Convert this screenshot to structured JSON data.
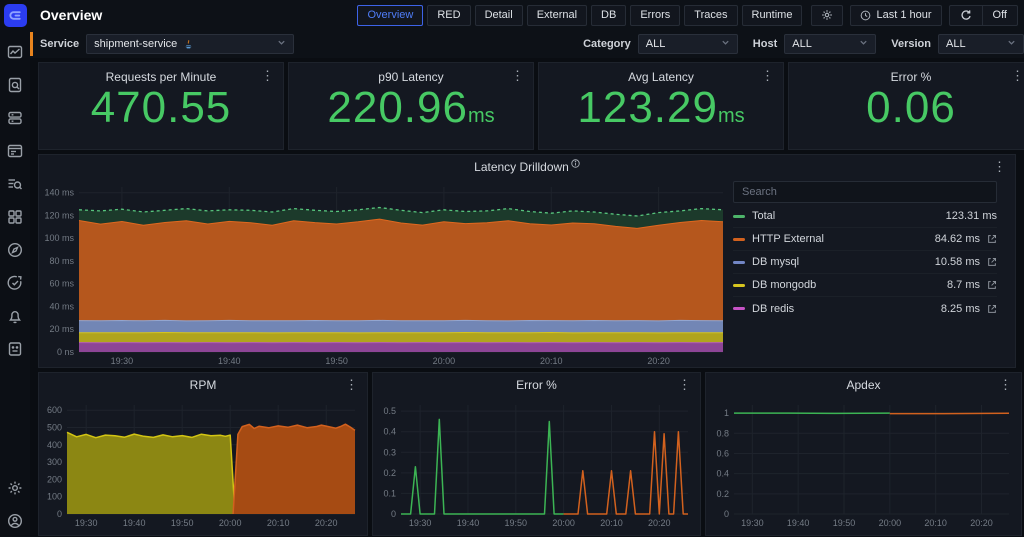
{
  "header": {
    "title": "Overview",
    "tabs": [
      {
        "label": "Overview",
        "active": true
      },
      {
        "label": "RED"
      },
      {
        "label": "Detail"
      },
      {
        "label": "External"
      },
      {
        "label": "DB"
      },
      {
        "label": "Errors"
      },
      {
        "label": "Traces"
      },
      {
        "label": "Runtime"
      }
    ],
    "time_range": "Last 1 hour",
    "auto_refresh": "Off"
  },
  "filters": {
    "service_label": "Service",
    "service_value": "shipment-service",
    "service_icon": "java-icon",
    "category_label": "Category",
    "category_value": "ALL",
    "host_label": "Host",
    "host_value": "ALL",
    "version_label": "Version",
    "version_value": "ALL"
  },
  "cards": [
    {
      "title": "Requests per Minute",
      "value": "470.55",
      "unit": ""
    },
    {
      "title": "p90 Latency",
      "value": "220.96",
      "unit": "ms"
    },
    {
      "title": "Avg Latency",
      "value": "123.29",
      "unit": "ms"
    },
    {
      "title": "Error %",
      "value": "0.06",
      "unit": ""
    }
  ],
  "latency_panel": {
    "search_placeholder": "Search",
    "legend": [
      {
        "name": "Total",
        "value": "123.31 ms",
        "color": "#4db46a",
        "link": false
      },
      {
        "name": "HTTP External",
        "value": "84.62 ms",
        "color": "#d2611e",
        "link": true
      },
      {
        "name": "DB mysql",
        "value": "10.58 ms",
        "color": "#7286c5",
        "link": true
      },
      {
        "name": "DB mongodb",
        "value": "8.7 ms",
        "color": "#d6c51f",
        "link": true
      },
      {
        "name": "DB redis",
        "value": "8.25 ms",
        "color": "#c653c6",
        "link": true
      }
    ]
  },
  "sidebar": {
    "icons": [
      "app-logo",
      "metrics-icon",
      "doc-search-icon",
      "hosts-icon",
      "browser-icon",
      "trace-search-icon",
      "services-grid-icon",
      "explore-compass-icon",
      "goals-target-icon",
      "alerts-bell-icon",
      "journal-icon",
      "settings-icon",
      "account-icon"
    ]
  },
  "colors": {
    "metric_green": "#47c964",
    "tab_active_blue": "#4f7df8",
    "accent_orange": "#e8841e",
    "panel_bg": "#141821",
    "page_bg": "#0a0d12"
  },
  "chart_data": [
    {
      "id": "latency",
      "type": "area",
      "title": "Latency Drilldown",
      "xlabel": "",
      "ylabel": "",
      "xlim": [
        0,
        60
      ],
      "ylim": [
        0,
        145
      ],
      "x_step": 2,
      "x_ticks": [
        {
          "v": 4,
          "label": "19:30"
        },
        {
          "v": 14,
          "label": "19:40"
        },
        {
          "v": 24,
          "label": "19:50"
        },
        {
          "v": 34,
          "label": "20:00"
        },
        {
          "v": 44,
          "label": "20:10"
        },
        {
          "v": 54,
          "label": "20:20"
        }
      ],
      "y_ticks": [
        {
          "v": 0,
          "label": "0 ns"
        },
        {
          "v": 20,
          "label": "20 ms"
        },
        {
          "v": 40,
          "label": "40 ms"
        },
        {
          "v": 60,
          "label": "60 ms"
        },
        {
          "v": 80,
          "label": "80 ms"
        },
        {
          "v": 100,
          "label": "100 ms"
        },
        {
          "v": 120,
          "label": "120 ms"
        },
        {
          "v": 140,
          "label": "140 ms"
        }
      ],
      "stack": [
        {
          "name": "DB redis",
          "fill": "#8d4596",
          "stroke": "#b257bb",
          "values": [
            8.3,
            8.2,
            8.3,
            8.2,
            8.3,
            8.2,
            8.3,
            8.2,
            8.3,
            8.2,
            8.3,
            8.2,
            8.3,
            8.2,
            8.3,
            8.2,
            8.3,
            8.2,
            8.3,
            8.2,
            8.3,
            8.2,
            8.3,
            8.2,
            8.3,
            8.2,
            8.3,
            8.2,
            8.3,
            8.2,
            8.3
          ]
        },
        {
          "name": "DB mongodb",
          "fill": "#b0a41d",
          "stroke": "#d4c41e",
          "values": [
            8.7,
            8.8,
            8.6,
            8.7,
            8.8,
            8.7,
            8.6,
            8.8,
            8.7,
            8.6,
            8.7,
            8.8,
            8.7,
            8.6,
            8.7,
            8.8,
            8.6,
            8.7,
            8.8,
            8.7,
            8.6,
            8.7,
            8.8,
            8.6,
            8.7,
            8.8,
            8.7,
            8.6,
            8.7,
            8.8,
            8.7
          ]
        },
        {
          "name": "DB mysql",
          "fill": "#7286b5",
          "stroke": "#93a5cf",
          "values": [
            10.6,
            10.4,
            10.8,
            10.5,
            10.7,
            10.4,
            10.6,
            10.8,
            10.5,
            10.6,
            10.4,
            10.7,
            10.5,
            10.6,
            10.8,
            10.4,
            10.6,
            10.5,
            10.7,
            10.6,
            10.4,
            10.8,
            10.5,
            10.6,
            10.7,
            10.4,
            10.6,
            10.5,
            10.8,
            10.6,
            10.5
          ]
        },
        {
          "name": "HTTP External",
          "fill": "#b5571d",
          "stroke": "#e0681f",
          "values": [
            88,
            85,
            87,
            84,
            86,
            88,
            85,
            87,
            86,
            84,
            88,
            86,
            85,
            87,
            89,
            86,
            84,
            87,
            85,
            86,
            88,
            85,
            84,
            86,
            85,
            83,
            81,
            84,
            86,
            88,
            87
          ]
        }
      ],
      "total": {
        "name": "Total",
        "fill": "#1c3a2b",
        "stroke": "#57c57d",
        "dash": "3,3",
        "values": [
          125,
          124,
          125.5,
          123,
          124.5,
          126,
          124,
          125,
          124.5,
          123,
          126,
          124.5,
          123.5,
          125,
          127,
          124.5,
          122.5,
          125,
          123.5,
          124,
          126,
          123.5,
          122,
          124,
          123,
          121,
          119.5,
          122.5,
          124,
          126,
          125
        ]
      }
    },
    {
      "id": "rpm",
      "type": "area",
      "title": "RPM",
      "xlim": [
        0,
        60
      ],
      "ylim": [
        0,
        630
      ],
      "x_ticks": [
        {
          "v": 4,
          "label": "19:30"
        },
        {
          "v": 14,
          "label": "19:40"
        },
        {
          "v": 24,
          "label": "19:50"
        },
        {
          "v": 34,
          "label": "20:00"
        },
        {
          "v": 44,
          "label": "20:10"
        },
        {
          "v": 54,
          "label": "20:20"
        }
      ],
      "y_ticks": [
        {
          "v": 0,
          "label": "0"
        },
        {
          "v": 100,
          "label": "100"
        },
        {
          "v": 200,
          "label": "200"
        },
        {
          "v": 300,
          "label": "300"
        },
        {
          "v": 400,
          "label": "400"
        },
        {
          "v": 500,
          "label": "500"
        },
        {
          "v": 600,
          "label": "600"
        }
      ],
      "series": [
        {
          "name": "rpm-before",
          "area": true,
          "fill": "#8c8713",
          "stroke": "#d3c513",
          "points": [
            [
              0,
              472
            ],
            [
              2,
              446
            ],
            [
              4,
              460
            ],
            [
              6,
              441
            ],
            [
              8,
              456
            ],
            [
              10,
              452
            ],
            [
              12,
              444
            ],
            [
              14,
              462
            ],
            [
              16,
              449
            ],
            [
              18,
              443
            ],
            [
              20,
              457
            ],
            [
              22,
              446
            ],
            [
              24,
              453
            ],
            [
              26,
              443
            ],
            [
              28,
              461
            ],
            [
              30,
              452
            ],
            [
              32,
              455
            ],
            [
              33,
              449
            ],
            [
              34,
              456
            ],
            [
              35,
              0
            ]
          ]
        },
        {
          "name": "rpm-after",
          "area": true,
          "fill": "#a64b13",
          "stroke": "#d2611e",
          "points": [
            [
              34.6,
              0
            ],
            [
              35.6,
              460
            ],
            [
              36.5,
              505
            ],
            [
              38,
              518
            ],
            [
              39,
              494
            ],
            [
              40,
              507
            ],
            [
              42,
              498
            ],
            [
              44,
              509
            ],
            [
              46,
              501
            ],
            [
              48,
              514
            ],
            [
              50,
              499
            ],
            [
              52,
              506
            ],
            [
              53,
              514
            ],
            [
              54,
              508
            ],
            [
              56,
              496
            ],
            [
              57,
              506
            ],
            [
              58,
              519
            ],
            [
              59,
              503
            ],
            [
              60,
              483
            ]
          ]
        }
      ]
    },
    {
      "id": "error_pct",
      "type": "line",
      "title": "Error %",
      "xlim": [
        0,
        60
      ],
      "ylim": [
        0,
        0.53
      ],
      "x_ticks": [
        {
          "v": 4,
          "label": "19:30"
        },
        {
          "v": 14,
          "label": "19:40"
        },
        {
          "v": 24,
          "label": "19:50"
        },
        {
          "v": 34,
          "label": "20:00"
        },
        {
          "v": 44,
          "label": "20:10"
        },
        {
          "v": 54,
          "label": "20:20"
        }
      ],
      "y_ticks": [
        {
          "v": 0,
          "label": "0"
        },
        {
          "v": 0.1,
          "label": "0.1"
        },
        {
          "v": 0.2,
          "label": "0.2"
        },
        {
          "v": 0.3,
          "label": "0.3"
        },
        {
          "v": 0.4,
          "label": "0.4"
        },
        {
          "v": 0.5,
          "label": "0.5"
        }
      ],
      "series": [
        {
          "name": "error-before",
          "area": false,
          "stroke": "#3cb454",
          "points": [
            [
              0,
              0
            ],
            [
              2,
              0
            ],
            [
              3,
              0.23
            ],
            [
              4,
              0
            ],
            [
              7,
              0
            ],
            [
              8,
              0.46
            ],
            [
              9,
              0
            ],
            [
              10,
              0
            ],
            [
              30,
              0
            ],
            [
              31,
              0.45
            ],
            [
              32,
              0
            ],
            [
              34,
              0
            ]
          ]
        },
        {
          "name": "error-after",
          "area": false,
          "stroke": "#d2611e",
          "points": [
            [
              34,
              0
            ],
            [
              37,
              0
            ],
            [
              38,
              0.21
            ],
            [
              39,
              0
            ],
            [
              43,
              0
            ],
            [
              44,
              0.21
            ],
            [
              45,
              0
            ],
            [
              47,
              0
            ],
            [
              48,
              0.21
            ],
            [
              49,
              0
            ],
            [
              52,
              0
            ],
            [
              53,
              0.4
            ],
            [
              54,
              0
            ],
            [
              55,
              0.39
            ],
            [
              56,
              0
            ],
            [
              57,
              0
            ],
            [
              58,
              0.4
            ],
            [
              59,
              0
            ],
            [
              60,
              0
            ]
          ]
        }
      ]
    },
    {
      "id": "apdex",
      "type": "line",
      "title": "Apdex",
      "xlim": [
        0,
        60
      ],
      "ylim": [
        0,
        1.08
      ],
      "x_ticks": [
        {
          "v": 4,
          "label": "19:30"
        },
        {
          "v": 14,
          "label": "19:40"
        },
        {
          "v": 24,
          "label": "19:50"
        },
        {
          "v": 34,
          "label": "20:00"
        },
        {
          "v": 44,
          "label": "20:10"
        },
        {
          "v": 54,
          "label": "20:20"
        }
      ],
      "y_ticks": [
        {
          "v": 0,
          "label": "0"
        },
        {
          "v": 0.2,
          "label": "0.2"
        },
        {
          "v": 0.4,
          "label": "0.4"
        },
        {
          "v": 0.6,
          "label": "0.6"
        },
        {
          "v": 0.8,
          "label": "0.8"
        },
        {
          "v": 1,
          "label": "1"
        }
      ],
      "series": [
        {
          "name": "apdex-before",
          "area": false,
          "stroke": "#3cb454",
          "points": [
            [
              0,
              1
            ],
            [
              12,
              1
            ],
            [
              22,
              0.997
            ],
            [
              34,
              1
            ]
          ]
        },
        {
          "name": "apdex-after",
          "area": false,
          "stroke": "#d2611e",
          "points": [
            [
              34,
              0.995
            ],
            [
              46,
              0.995
            ],
            [
              60,
              0.999
            ]
          ]
        }
      ]
    }
  ]
}
